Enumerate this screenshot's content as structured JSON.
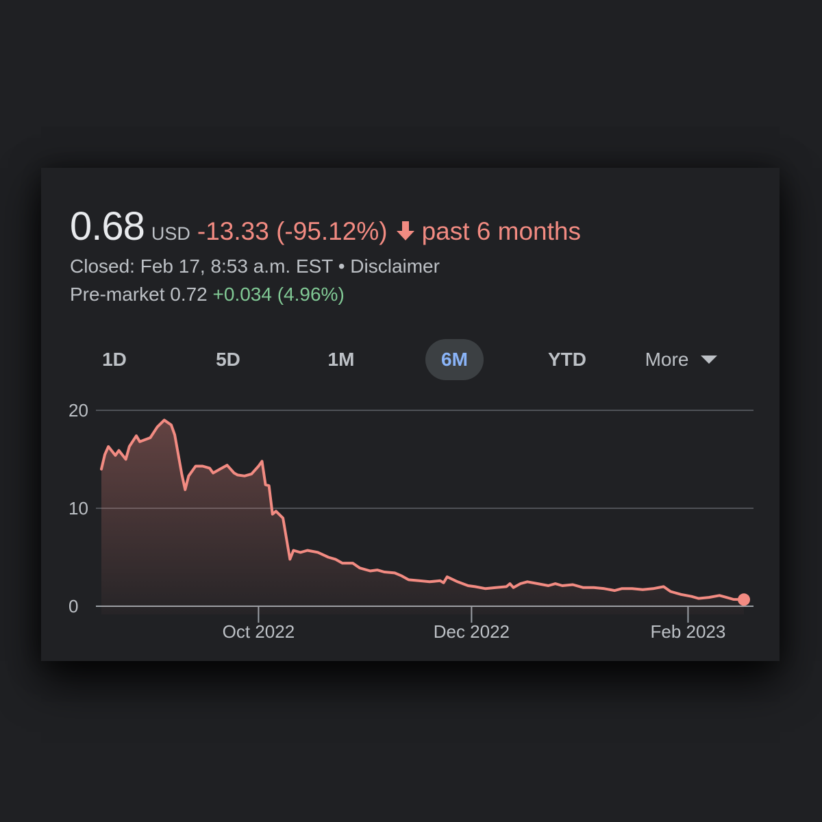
{
  "quote": {
    "price": "0.68",
    "currency": "USD",
    "change": "-13.33 (-95.12%)",
    "period": "past 6 months",
    "closed": "Closed: Feb 17, 8:53 a.m. EST",
    "separator": "•",
    "disclaimer": "Disclaimer",
    "premarket_label": "Pre-market 0.72",
    "premarket_change": "+0.034 (4.96%)"
  },
  "tabs": [
    {
      "label": "1D",
      "active": false
    },
    {
      "label": "5D",
      "active": false
    },
    {
      "label": "1M",
      "active": false
    },
    {
      "label": "6M",
      "active": true
    },
    {
      "label": "YTD",
      "active": false
    },
    {
      "label": "More",
      "active": false
    }
  ],
  "colors": {
    "negative": "#f28b82",
    "positive": "#81c995",
    "active_tab": "#8ab4f8",
    "background": "#202124"
  },
  "icons": [
    "arrow-down-icon",
    "caret-down-icon"
  ],
  "chart_data": {
    "type": "area",
    "title": "",
    "xlabel": "",
    "ylabel": "",
    "ylim": [
      0,
      20
    ],
    "yticks": [
      0,
      10,
      20
    ],
    "xticks": [
      "Oct 2022",
      "Dec 2022",
      "Feb 2023"
    ],
    "xtick_dates": [
      "2022-10-01",
      "2022-12-01",
      "2023-02-01"
    ],
    "xlim": [
      "2022-08-17",
      "2023-02-17"
    ],
    "grid": true,
    "legend": "none",
    "series": [
      {
        "color": "#f28b82",
        "points": [
          [
            "2022-08-17",
            14.0
          ],
          [
            "2022-08-18",
            15.5
          ],
          [
            "2022-08-19",
            16.3
          ],
          [
            "2022-08-21",
            15.4
          ],
          [
            "2022-08-22",
            15.9
          ],
          [
            "2022-08-24",
            15.0
          ],
          [
            "2022-08-25",
            16.3
          ],
          [
            "2022-08-27",
            17.4
          ],
          [
            "2022-08-28",
            16.8
          ],
          [
            "2022-08-31",
            17.2
          ],
          [
            "2022-09-02",
            18.3
          ],
          [
            "2022-09-04",
            19.0
          ],
          [
            "2022-09-06",
            18.5
          ],
          [
            "2022-09-07",
            17.5
          ],
          [
            "2022-09-09",
            13.5
          ],
          [
            "2022-09-10",
            11.9
          ],
          [
            "2022-09-11",
            13.3
          ],
          [
            "2022-09-13",
            14.3
          ],
          [
            "2022-09-15",
            14.3
          ],
          [
            "2022-09-17",
            14.1
          ],
          [
            "2022-09-18",
            13.6
          ],
          [
            "2022-09-20",
            14.0
          ],
          [
            "2022-09-22",
            14.4
          ],
          [
            "2022-09-24",
            13.6
          ],
          [
            "2022-09-25",
            13.4
          ],
          [
            "2022-09-27",
            13.3
          ],
          [
            "2022-09-29",
            13.5
          ],
          [
            "2022-09-31",
            14.3
          ],
          [
            "2022-10-02",
            14.8
          ],
          [
            "2022-10-03",
            12.4
          ],
          [
            "2022-10-04",
            12.3
          ],
          [
            "2022-10-05",
            9.4
          ],
          [
            "2022-10-06",
            9.7
          ],
          [
            "2022-10-08",
            9.0
          ],
          [
            "2022-10-10",
            4.8
          ],
          [
            "2022-10-11",
            5.7
          ],
          [
            "2022-10-13",
            5.5
          ],
          [
            "2022-10-15",
            5.7
          ],
          [
            "2022-10-18",
            5.5
          ],
          [
            "2022-10-21",
            5.0
          ],
          [
            "2022-10-23",
            4.8
          ],
          [
            "2022-10-25",
            4.4
          ],
          [
            "2022-10-28",
            4.4
          ],
          [
            "2022-10-30",
            3.9
          ],
          [
            "2022-11-02",
            3.6
          ],
          [
            "2022-11-04",
            3.7
          ],
          [
            "2022-11-06",
            3.5
          ],
          [
            "2022-11-09",
            3.4
          ],
          [
            "2022-11-11",
            3.1
          ],
          [
            "2022-11-13",
            2.7
          ],
          [
            "2022-11-16",
            2.6
          ],
          [
            "2022-11-19",
            2.5
          ],
          [
            "2022-11-22",
            2.6
          ],
          [
            "2022-11-23",
            2.4
          ],
          [
            "2022-11-24",
            3.0
          ],
          [
            "2022-11-27",
            2.5
          ],
          [
            "2022-11-30",
            2.1
          ],
          [
            "2022-12-02",
            2.0
          ],
          [
            "2022-12-05",
            1.8
          ],
          [
            "2022-12-08",
            1.9
          ],
          [
            "2022-12-11",
            2.0
          ],
          [
            "2022-12-12",
            2.3
          ],
          [
            "2022-12-13",
            1.9
          ],
          [
            "2022-12-15",
            2.3
          ],
          [
            "2022-12-17",
            2.5
          ],
          [
            "2022-12-20",
            2.3
          ],
          [
            "2022-12-23",
            2.1
          ],
          [
            "2022-12-25",
            2.3
          ],
          [
            "2022-12-27",
            2.1
          ],
          [
            "2022-12-30",
            2.2
          ],
          [
            "2023-01-02",
            1.9
          ],
          [
            "2023-01-05",
            1.9
          ],
          [
            "2023-01-08",
            1.8
          ],
          [
            "2023-01-11",
            1.6
          ],
          [
            "2023-01-13",
            1.8
          ],
          [
            "2023-01-16",
            1.8
          ],
          [
            "2023-01-19",
            1.7
          ],
          [
            "2023-01-22",
            1.8
          ],
          [
            "2023-01-25",
            2.0
          ],
          [
            "2023-01-27",
            1.5
          ],
          [
            "2023-01-30",
            1.2
          ],
          [
            "2023-02-02",
            1.0
          ],
          [
            "2023-02-04",
            0.8
          ],
          [
            "2023-02-07",
            0.9
          ],
          [
            "2023-02-10",
            1.1
          ],
          [
            "2023-02-12",
            0.9
          ],
          [
            "2023-02-14",
            0.7
          ],
          [
            "2023-02-17",
            0.68
          ]
        ]
      }
    ]
  }
}
